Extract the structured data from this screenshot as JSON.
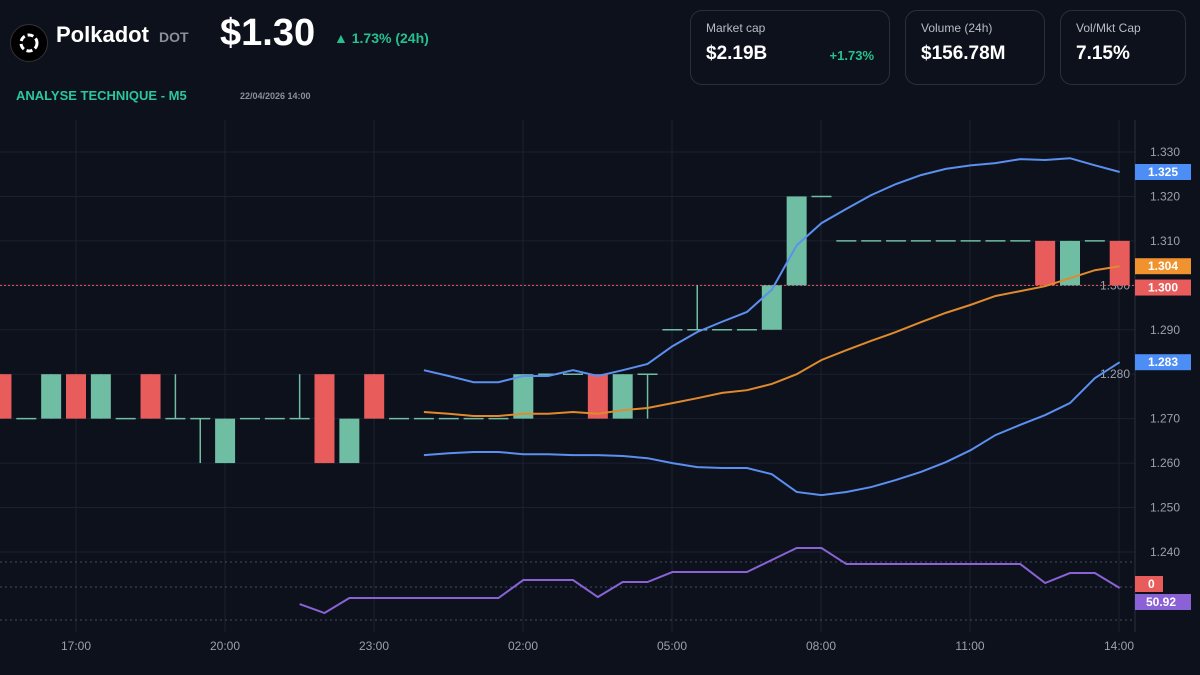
{
  "header": {
    "name": "Polkadot",
    "symbol": "DOT",
    "price": "$1.30",
    "change": "▲ 1.73% (24h)",
    "subtitle": "ANALYSE TECHNIQUE - M5",
    "datetime": "22/04/2026 14:00",
    "logo_icon": "polkadot-logo-icon"
  },
  "stats": [
    {
      "label": "Market cap",
      "value": "$2.19B",
      "change": "+1.73%"
    },
    {
      "label": "Volume (24h)",
      "value": "$156.78M"
    },
    {
      "label": "Vol/Mkt Cap",
      "value": "7.15%"
    }
  ],
  "colors": {
    "up": "#6fbea3",
    "down": "#e85c5c",
    "bb_band": "#5b8ff0",
    "bb_mid": "#e08a2c",
    "rsi": "#8a62d6",
    "background": "#0d111c"
  },
  "chart_data": {
    "type": "candlestick",
    "interval_hours": 0.5,
    "x_ticks": [
      "17:00",
      "20:00",
      "23:00",
      "02:00",
      "05:00",
      "08:00",
      "11:00",
      "14:00"
    ],
    "y_ticks": [
      "1.330",
      "1.320",
      "1.310",
      "1.300",
      "1.290",
      "1.280",
      "1.270",
      "1.260",
      "1.250",
      "1.240"
    ],
    "ylim": [
      1.233,
      1.336
    ],
    "candles": [
      [
        1.28,
        1.28,
        1.27,
        1.27
      ],
      [
        1.27,
        1.27,
        1.27,
        1.27
      ],
      [
        1.27,
        1.28,
        1.27,
        1.28
      ],
      [
        1.28,
        1.28,
        1.27,
        1.27
      ],
      [
        1.27,
        1.28,
        1.27,
        1.28
      ],
      [
        1.27,
        1.27,
        1.27,
        1.27
      ],
      [
        1.28,
        1.28,
        1.27,
        1.27
      ],
      [
        1.27,
        1.28,
        1.27,
        1.27
      ],
      [
        1.27,
        1.27,
        1.26,
        1.27
      ],
      [
        1.26,
        1.27,
        1.26,
        1.27
      ],
      [
        1.27,
        1.27,
        1.27,
        1.27
      ],
      [
        1.27,
        1.27,
        1.27,
        1.27
      ],
      [
        1.27,
        1.28,
        1.27,
        1.27
      ],
      [
        1.28,
        1.28,
        1.26,
        1.26
      ],
      [
        1.26,
        1.27,
        1.26,
        1.27
      ],
      [
        1.28,
        1.28,
        1.27,
        1.27
      ],
      [
        1.27,
        1.27,
        1.27,
        1.27
      ],
      [
        1.27,
        1.27,
        1.27,
        1.27
      ],
      [
        1.27,
        1.27,
        1.27,
        1.27
      ],
      [
        1.27,
        1.27,
        1.27,
        1.27
      ],
      [
        1.27,
        1.27,
        1.27,
        1.27
      ],
      [
        1.27,
        1.28,
        1.27,
        1.28
      ],
      [
        1.28,
        1.28,
        1.28,
        1.28
      ],
      [
        1.28,
        1.28,
        1.28,
        1.28
      ],
      [
        1.28,
        1.28,
        1.27,
        1.27
      ],
      [
        1.27,
        1.28,
        1.27,
        1.28
      ],
      [
        1.28,
        1.28,
        1.27,
        1.28
      ],
      [
        1.29,
        1.29,
        1.29,
        1.29
      ],
      [
        1.29,
        1.3,
        1.29,
        1.29
      ],
      [
        1.29,
        1.29,
        1.29,
        1.29
      ],
      [
        1.29,
        1.29,
        1.29,
        1.29
      ],
      [
        1.29,
        1.3,
        1.29,
        1.3
      ],
      [
        1.3,
        1.32,
        1.3,
        1.32
      ],
      [
        1.32,
        1.32,
        1.32,
        1.32
      ],
      [
        1.31,
        1.31,
        1.31,
        1.31
      ],
      [
        1.31,
        1.31,
        1.31,
        1.31
      ],
      [
        1.31,
        1.31,
        1.31,
        1.31
      ],
      [
        1.31,
        1.31,
        1.31,
        1.31
      ],
      [
        1.31,
        1.31,
        1.31,
        1.31
      ],
      [
        1.31,
        1.31,
        1.31,
        1.31
      ],
      [
        1.31,
        1.31,
        1.31,
        1.31
      ],
      [
        1.31,
        1.31,
        1.31,
        1.31
      ],
      [
        1.31,
        1.31,
        1.3,
        1.3
      ],
      [
        1.3,
        1.31,
        1.3,
        1.31
      ],
      [
        1.31,
        1.31,
        1.31,
        1.31
      ],
      [
        1.31,
        1.31,
        1.3,
        1.3
      ]
    ],
    "bollinger_start_index": 17,
    "bb_upper": [
      1.2809,
      1.2796,
      1.2782,
      1.2782,
      1.2796,
      1.2796,
      1.2809,
      1.2796,
      1.2809,
      1.2823,
      1.2863,
      1.2895,
      1.2918,
      1.294,
      1.299,
      1.309,
      1.314,
      1.3172,
      1.3203,
      1.3228,
      1.3248,
      1.3262,
      1.327,
      1.3275,
      1.3284,
      1.3282,
      1.3286,
      1.327,
      1.3255
    ],
    "bb_middle": [
      1.2715,
      1.2711,
      1.2706,
      1.2706,
      1.2711,
      1.2711,
      1.2715,
      1.2711,
      1.2719,
      1.2724,
      1.2735,
      1.2746,
      1.2758,
      1.2764,
      1.2778,
      1.28,
      1.2832,
      1.2854,
      1.2875,
      1.2895,
      1.2917,
      1.2938,
      1.2956,
      1.2976,
      1.2987,
      1.2998,
      1.3016,
      1.3034,
      1.3043
    ],
    "bb_lower": [
      1.2618,
      1.2622,
      1.2625,
      1.2625,
      1.262,
      1.262,
      1.2618,
      1.2618,
      1.2616,
      1.2611,
      1.26,
      1.2591,
      1.2589,
      1.2589,
      1.2575,
      1.2535,
      1.2528,
      1.2535,
      1.2546,
      1.2562,
      1.258,
      1.2602,
      1.2629,
      1.2663,
      1.2686,
      1.2708,
      1.2735,
      1.2791,
      1.2827
    ],
    "rsi_start_index": 12,
    "rsi": [
      39.7,
      33.4,
      43.9,
      43.9,
      43.9,
      43.9,
      43.9,
      43.9,
      43.9,
      56.5,
      56.5,
      56.5,
      44.6,
      55.1,
      55.1,
      62.1,
      62.1,
      62.1,
      62.1,
      70.5,
      78.9,
      78.9,
      67.7,
      67.7,
      67.7,
      67.7,
      67.7,
      67.7,
      67.7,
      67.7,
      54.4,
      61.4,
      61.4,
      50.92
    ],
    "price_line": 1.3,
    "tags": [
      {
        "text": "1.325",
        "color": "#4c8df6",
        "value": 1.3255
      },
      {
        "text": "1.304",
        "color": "#f0922e",
        "value": 1.3043
      },
      {
        "text": "1.300",
        "color": "#e85c5c",
        "value": 1.2995
      },
      {
        "text": "1.283",
        "color": "#4c8df6",
        "value": 1.2827
      }
    ],
    "rsi_tags": [
      {
        "text": "0",
        "color": "#e85c5c"
      },
      {
        "text": "50.92",
        "color": "#8a62d6"
      }
    ]
  }
}
